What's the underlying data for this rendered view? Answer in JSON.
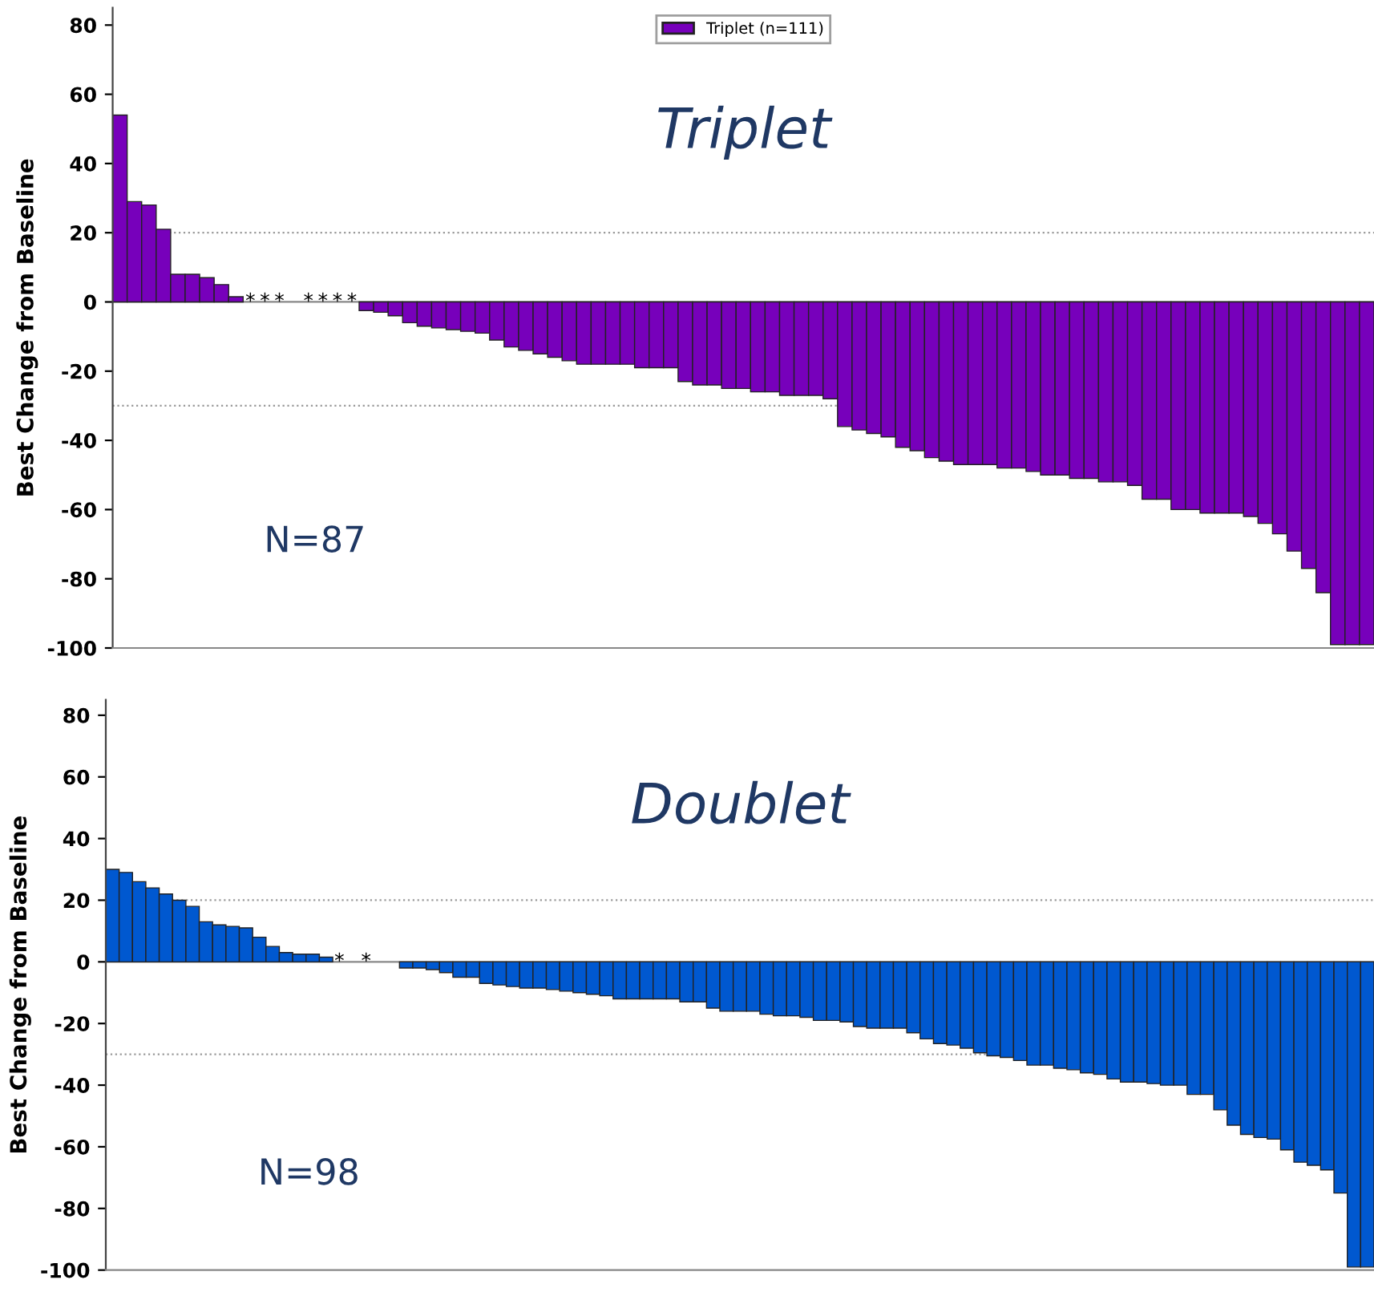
{
  "chart_data": [
    {
      "type": "bar",
      "title": "Triplet",
      "ylabel": "Best Change from Baseline",
      "legend": "top",
      "tick_labels": "y",
      "ylim": [
        -100,
        85
      ],
      "yticks": [
        -100,
        -80,
        -60,
        -40,
        -20,
        0,
        20,
        40,
        60,
        80
      ],
      "ref_lines": [
        {
          "axis": "y",
          "value": 20,
          "color": "#999999",
          "line_style": "dotted"
        },
        {
          "axis": "y",
          "value": -30,
          "color": "#999999",
          "line_style": "dotted"
        }
      ],
      "annotations": [
        "N=87"
      ],
      "categories": [
        null,
        null,
        null,
        null,
        null,
        null,
        null,
        null,
        null,
        null,
        null,
        null,
        null,
        null,
        null,
        null,
        null,
        null,
        null,
        null,
        null,
        null,
        null,
        null,
        null,
        null,
        null,
        null,
        null,
        null,
        null,
        null,
        null,
        null,
        null,
        null,
        null,
        null,
        null,
        null,
        null,
        null,
        null,
        null,
        null,
        null,
        null,
        null,
        null,
        null,
        null,
        null,
        null,
        null,
        null,
        null,
        null,
        null,
        null,
        null,
        null,
        null,
        null,
        null,
        null,
        null,
        null,
        null,
        null,
        null,
        null,
        null,
        null,
        null,
        null,
        null,
        null,
        null,
        null,
        null,
        null,
        null,
        null,
        null,
        null,
        null,
        null
      ],
      "series": [
        {
          "name": "Triplet (n=111)",
          "color": "#7700bb",
          "values": [
            54,
            29,
            28,
            21,
            8,
            8,
            7,
            5,
            1.5,
            0,
            0,
            0,
            null,
            0,
            0,
            0,
            0,
            -2.5,
            -3,
            -4,
            -6,
            -7,
            -7.5,
            -8,
            -8.5,
            -9,
            -11,
            -13,
            -14,
            -15,
            -16,
            -17,
            -18,
            -18,
            -18,
            -18,
            -19,
            -19,
            -19,
            -23,
            -24,
            -24,
            -25,
            -25,
            -26,
            -26,
            -27,
            -27,
            -27,
            -28,
            -36,
            -37,
            -38,
            -39,
            -42,
            -43,
            -45,
            -46,
            -47,
            -47,
            -47,
            -48,
            -48,
            -49,
            -50,
            -50,
            -51,
            -51,
            -52,
            -52,
            -53,
            -57,
            -57,
            -60,
            -60,
            -61,
            -61,
            -61,
            -62,
            -64,
            -67,
            -72,
            -77,
            -84,
            -99,
            -99,
            -99
          ],
          "value_labels": [
            null,
            null,
            null,
            null,
            null,
            null,
            null,
            null,
            null,
            "*",
            "*",
            "*",
            null,
            "*",
            "*",
            "*",
            "*",
            null,
            null,
            null,
            null,
            null,
            null,
            null,
            null,
            null,
            null,
            null,
            null,
            null,
            null,
            null,
            null,
            null,
            null,
            null,
            null,
            null,
            null,
            null,
            null,
            null,
            null,
            null,
            null,
            null,
            null,
            null,
            null,
            null,
            null,
            null,
            null,
            null,
            null,
            null,
            null,
            null,
            null,
            null,
            null,
            null,
            null,
            null,
            null,
            null,
            null,
            null,
            null,
            null,
            null,
            null,
            null,
            null,
            null,
            null,
            null,
            null,
            null,
            null,
            null,
            null,
            null,
            null,
            null,
            null,
            null
          ]
        }
      ]
    },
    {
      "type": "bar",
      "title": "Doublet",
      "ylabel": "Best Change from Baseline",
      "tick_labels": "y",
      "ylim": [
        -100,
        85
      ],
      "yticks": [
        -100,
        -80,
        -60,
        -40,
        -20,
        0,
        20,
        40,
        60,
        80
      ],
      "ref_lines": [
        {
          "axis": "y",
          "value": 20,
          "color": "#999999",
          "line_style": "dotted"
        },
        {
          "axis": "y",
          "value": -30,
          "color": "#999999",
          "line_style": "dotted"
        }
      ],
      "annotations": [
        "N=98"
      ],
      "categories": [
        null,
        null,
        null,
        null,
        null,
        null,
        null,
        null,
        null,
        null,
        null,
        null,
        null,
        null,
        null,
        null,
        null,
        null,
        null,
        null,
        null,
        null,
        null,
        null,
        null,
        null,
        null,
        null,
        null,
        null,
        null,
        null,
        null,
        null,
        null,
        null,
        null,
        null,
        null,
        null,
        null,
        null,
        null,
        null,
        null,
        null,
        null,
        null,
        null,
        null,
        null,
        null,
        null,
        null,
        null,
        null,
        null,
        null,
        null,
        null,
        null,
        null,
        null,
        null,
        null,
        null,
        null,
        null,
        null,
        null,
        null,
        null,
        null,
        null,
        null,
        null,
        null,
        null,
        null,
        null,
        null,
        null,
        null,
        null,
        null,
        null,
        null,
        null,
        null,
        null,
        null,
        null,
        null,
        null,
        null
      ],
      "series": [
        {
          "color": "#0058d0",
          "values": [
            30,
            29,
            26,
            24,
            22,
            20,
            18,
            13,
            12,
            11.5,
            11,
            8,
            5,
            3,
            2.5,
            2.5,
            1.5,
            0,
            null,
            0,
            null,
            null,
            -2,
            -2,
            -2.5,
            -3.5,
            -5,
            -5,
            -7,
            -7.5,
            -8,
            -8.5,
            -8.5,
            -9,
            -9.5,
            -10,
            -10.5,
            -11,
            -12,
            -12,
            -12,
            -12,
            -12,
            -13,
            -13,
            -15,
            -16,
            -16,
            -16,
            -17,
            -17.5,
            -17.5,
            -18,
            -19,
            -19,
            -19.5,
            -21,
            -21.5,
            -21.5,
            -21.5,
            -23,
            -25,
            -26.5,
            -27,
            -28,
            -29.5,
            -30.5,
            -31,
            -32,
            -33.5,
            -33.5,
            -34.5,
            -35,
            -36,
            -36.5,
            -38,
            -39,
            -39,
            -39.5,
            -40,
            -40,
            -43,
            -43,
            -48,
            -53,
            -56,
            -57,
            -57.5,
            -61,
            -65,
            -66,
            -67.5,
            -75,
            -99,
            -99
          ],
          "value_labels": [
            null,
            null,
            null,
            null,
            null,
            null,
            null,
            null,
            null,
            null,
            null,
            null,
            null,
            null,
            null,
            null,
            null,
            "*",
            null,
            "*",
            null,
            null,
            null,
            null,
            null,
            null,
            null,
            null,
            null,
            null,
            null,
            null,
            null,
            null,
            null,
            null,
            null,
            null,
            null,
            null,
            null,
            null,
            null,
            null,
            null,
            null,
            null,
            null,
            null,
            null,
            null,
            null,
            null,
            null,
            null,
            null,
            null,
            null,
            null,
            null,
            null,
            null,
            null,
            null,
            null,
            null,
            null,
            null,
            null,
            null,
            null,
            null,
            null,
            null,
            null,
            null,
            null,
            null,
            null,
            null,
            null,
            null,
            null,
            null,
            null,
            null,
            null,
            null,
            null,
            null,
            null,
            null,
            null,
            null,
            null
          ]
        }
      ]
    }
  ]
}
